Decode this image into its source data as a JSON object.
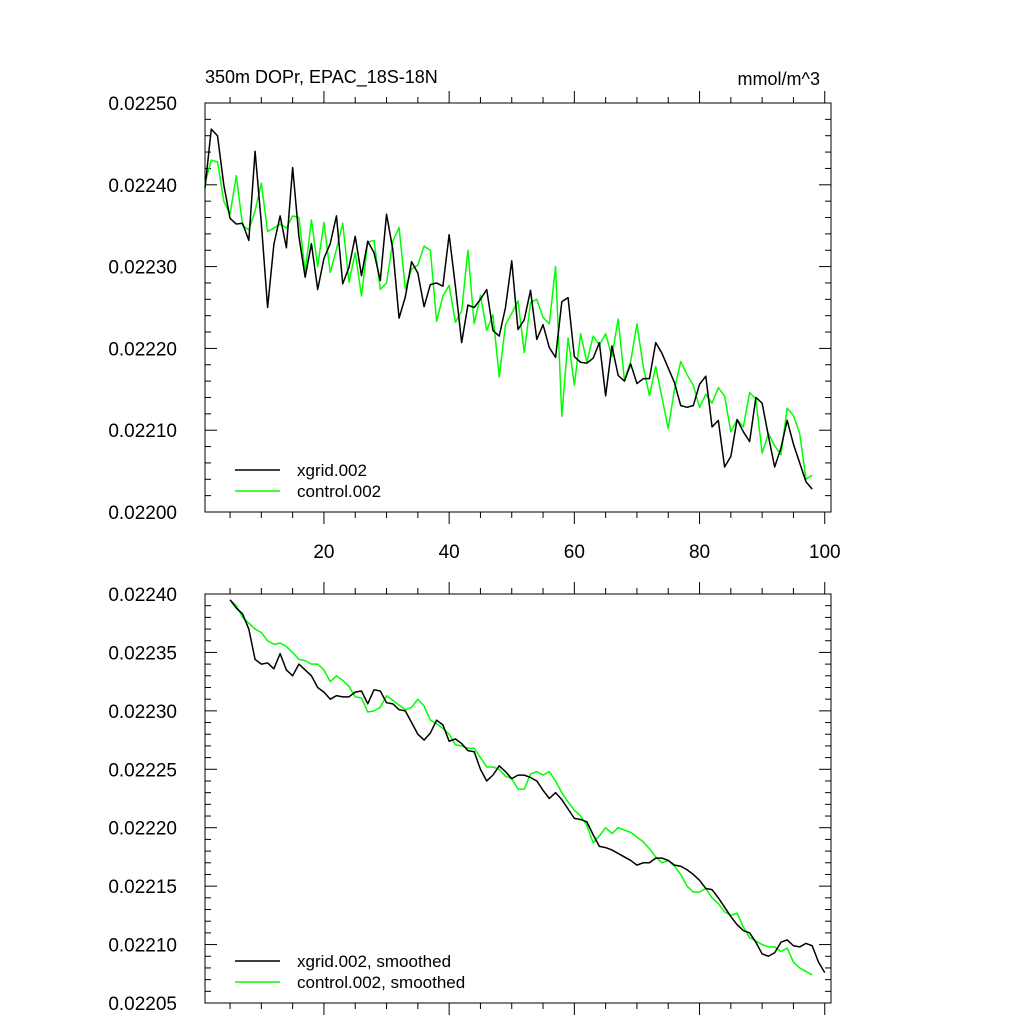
{
  "chart_data": [
    {
      "type": "line",
      "title": "350m DOPr, EPAC_18S-18N",
      "units": "mmol/m^3",
      "xlabel": "",
      "ylabel": "",
      "xlim": [
        1,
        101
      ],
      "ylim": [
        0.022,
        0.0225
      ],
      "x_ticks": [
        20,
        40,
        60,
        80,
        100
      ],
      "y_ticks": [
        0.022,
        0.0221,
        0.0222,
        0.0223,
        0.0224,
        0.0225
      ],
      "y_tick_labels": [
        "0.02200",
        "0.02210",
        "0.02220",
        "0.02230",
        "0.02240",
        "0.02250"
      ],
      "legend_position": "bottom-left",
      "series": [
        {
          "name": "xgrid.002",
          "color": "#000000",
          "x_start": 1,
          "values": [
            0.022396,
            0.022468,
            0.02246,
            0.0224,
            0.022359,
            0.022352,
            0.022353,
            0.022332,
            0.022441,
            0.022353,
            0.02225,
            0.022327,
            0.022362,
            0.022323,
            0.022421,
            0.022337,
            0.022287,
            0.022328,
            0.022272,
            0.02231,
            0.022328,
            0.022362,
            0.022279,
            0.022299,
            0.022337,
            0.022289,
            0.022331,
            0.022317,
            0.022283,
            0.022364,
            0.022321,
            0.022237,
            0.022263,
            0.022306,
            0.022292,
            0.022251,
            0.022278,
            0.02228,
            0.022276,
            0.022339,
            0.022276,
            0.022207,
            0.022253,
            0.02225,
            0.02226,
            0.022272,
            0.022222,
            0.022215,
            0.02225,
            0.022307,
            0.022223,
            0.022235,
            0.022271,
            0.022211,
            0.022229,
            0.022201,
            0.022189,
            0.022257,
            0.022262,
            0.02219,
            0.022183,
            0.022182,
            0.022188,
            0.022207,
            0.022142,
            0.022203,
            0.022167,
            0.02216,
            0.022181,
            0.022157,
            0.022163,
            0.022163,
            0.022207,
            0.022194,
            0.022176,
            0.022158,
            0.02213,
            0.022128,
            0.02213,
            0.022156,
            0.022166,
            0.022104,
            0.022112,
            0.022055,
            0.022068,
            0.022113,
            0.022098,
            0.022086,
            0.02214,
            0.022133,
            0.022093,
            0.022055,
            0.022078,
            0.022112,
            0.022083,
            0.02206,
            0.022037,
            0.022028
          ]
        },
        {
          "name": "control.002",
          "color": "#00ff00",
          "x_start": 1,
          "values": [
            0.022402,
            0.02243,
            0.022428,
            0.02238,
            0.022364,
            0.022411,
            0.02235,
            0.022345,
            0.022368,
            0.022402,
            0.022343,
            0.022347,
            0.022352,
            0.022347,
            0.022362,
            0.02236,
            0.022293,
            0.022357,
            0.0223,
            0.022354,
            0.022293,
            0.022321,
            0.022353,
            0.022281,
            0.022317,
            0.022264,
            0.02233,
            0.022332,
            0.022272,
            0.02228,
            0.022331,
            0.022348,
            0.022273,
            0.022297,
            0.022302,
            0.022325,
            0.02232,
            0.022233,
            0.022264,
            0.022277,
            0.022232,
            0.022246,
            0.02232,
            0.02223,
            0.022265,
            0.022222,
            0.022241,
            0.022165,
            0.022229,
            0.022243,
            0.022258,
            0.022195,
            0.022256,
            0.02226,
            0.022238,
            0.02223,
            0.0223,
            0.022117,
            0.022213,
            0.022155,
            0.022218,
            0.022183,
            0.022215,
            0.022204,
            0.022218,
            0.02219,
            0.022236,
            0.022161,
            0.022184,
            0.02223,
            0.022178,
            0.022142,
            0.022178,
            0.02214,
            0.022102,
            0.02215,
            0.022184,
            0.022168,
            0.022155,
            0.022128,
            0.022144,
            0.022133,
            0.022152,
            0.022142,
            0.022098,
            0.022113,
            0.022104,
            0.022146,
            0.022138,
            0.022072,
            0.022096,
            0.022081,
            0.02207,
            0.022127,
            0.022118,
            0.022096,
            0.02204,
            0.022045
          ]
        }
      ]
    },
    {
      "type": "line",
      "title": "",
      "xlabel": "",
      "ylabel": "",
      "xlim": [
        1,
        101
      ],
      "ylim": [
        0.02205,
        0.0224
      ],
      "x_ticks": [
        20,
        40,
        60,
        80,
        100
      ],
      "y_ticks": [
        0.02205,
        0.0221,
        0.02215,
        0.0222,
        0.02225,
        0.0223,
        0.02235,
        0.0224
      ],
      "y_tick_labels": [
        "0.02205",
        "0.02210",
        "0.02215",
        "0.02220",
        "0.02225",
        "0.02230",
        "0.02235",
        "0.02240"
      ],
      "legend_position": "bottom-left",
      "series": [
        {
          "name": "xgrid.002, smoothed",
          "color": "#000000",
          "x_start": 5,
          "values": [
            0.022395,
            0.022388,
            0.022383,
            0.02237,
            0.022344,
            0.02234,
            0.022341,
            0.022336,
            0.022349,
            0.022335,
            0.02233,
            0.02234,
            0.022335,
            0.02233,
            0.02232,
            0.022316,
            0.02231,
            0.022313,
            0.022312,
            0.022312,
            0.022316,
            0.022317,
            0.022306,
            0.022318,
            0.022317,
            0.022307,
            0.022306,
            0.022301,
            0.0223,
            0.02229,
            0.02228,
            0.022275,
            0.022281,
            0.022292,
            0.022288,
            0.022274,
            0.022276,
            0.022272,
            0.022266,
            0.022265,
            0.02225,
            0.02224,
            0.022245,
            0.022253,
            0.022248,
            0.022242,
            0.022245,
            0.022245,
            0.022243,
            0.02224,
            0.022232,
            0.022225,
            0.02223,
            0.022224,
            0.022216,
            0.022208,
            0.022207,
            0.022205,
            0.022194,
            0.022184,
            0.022183,
            0.022181,
            0.022178,
            0.022175,
            0.022172,
            0.022168,
            0.02217,
            0.02217,
            0.022174,
            0.022174,
            0.022172,
            0.022168,
            0.022167,
            0.022164,
            0.02216,
            0.022155,
            0.022148,
            0.022147,
            0.02214,
            0.022132,
            0.022124,
            0.022117,
            0.022112,
            0.02211,
            0.022102,
            0.022092,
            0.02209,
            0.022093,
            0.022102,
            0.022104,
            0.022099,
            0.022098,
            0.022101,
            0.022099,
            0.022085,
            0.022076
          ]
        },
        {
          "name": "control.002, smoothed",
          "color": "#00ff00",
          "x_start": 5,
          "values": [
            0.022395,
            0.02239,
            0.02238,
            0.022375,
            0.02237,
            0.022367,
            0.02236,
            0.022357,
            0.022358,
            0.022355,
            0.02235,
            0.022344,
            0.022343,
            0.02234,
            0.02234,
            0.022335,
            0.022325,
            0.02233,
            0.022326,
            0.022321,
            0.022312,
            0.022311,
            0.022299,
            0.0223,
            0.022303,
            0.022313,
            0.022309,
            0.022305,
            0.022301,
            0.022303,
            0.02231,
            0.022304,
            0.022292,
            0.022289,
            0.022285,
            0.02228,
            0.022271,
            0.02227,
            0.022268,
            0.022268,
            0.02226,
            0.022252,
            0.022252,
            0.02225,
            0.022244,
            0.022242,
            0.022233,
            0.022233,
            0.022246,
            0.022248,
            0.022245,
            0.022248,
            0.02224,
            0.02223,
            0.022222,
            0.022215,
            0.02221,
            0.022202,
            0.022187,
            0.022193,
            0.0222,
            0.022195,
            0.0222,
            0.022198,
            0.022196,
            0.022192,
            0.022188,
            0.022182,
            0.022175,
            0.02217,
            0.022172,
            0.022167,
            0.02216,
            0.02215,
            0.022145,
            0.022145,
            0.022148,
            0.02214,
            0.022135,
            0.022128,
            0.022125,
            0.022127,
            0.022115,
            0.022106,
            0.022103,
            0.0221,
            0.022098,
            0.022098,
            0.022094,
            0.022097,
            0.022085,
            0.02208,
            0.022077,
            0.022074
          ]
        }
      ]
    }
  ]
}
